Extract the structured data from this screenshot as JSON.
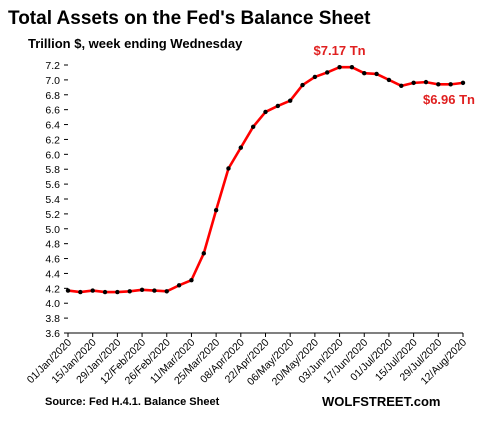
{
  "chart_data": {
    "type": "line",
    "title": "Total Assets on the Fed's Balance Sheet",
    "subtitle": "Trillion $, week ending Wednesday",
    "ylim": [
      3.6,
      7.2
    ],
    "ytick_step": 0.2,
    "grid": false,
    "x": [
      "01/Jan/2020",
      "08/Jan/2020",
      "15/Jan/2020",
      "22/Jan/2020",
      "29/Jan/2020",
      "05/Feb/2020",
      "12/Feb/2020",
      "19/Feb/2020",
      "26/Feb/2020",
      "04/Mar/2020",
      "11/Mar/2020",
      "18/Mar/2020",
      "25/Mar/2020",
      "01/Apr/2020",
      "08/Apr/2020",
      "15/Apr/2020",
      "22/Apr/2020",
      "29/Apr/2020",
      "06/May/2020",
      "13/May/2020",
      "20/May/2020",
      "27/May/2020",
      "03/Jun/2020",
      "10/Jun/2020",
      "17/Jun/2020",
      "24/Jun/2020",
      "01/Jul/2020",
      "08/Jul/2020",
      "15/Jul/2020",
      "22/Jul/2020",
      "29/Jul/2020",
      "05/Aug/2020",
      "12/Aug/2020"
    ],
    "tick_labels": [
      "01/Jan/2020",
      "15/Jan/2020",
      "29/Jan/2020",
      "12/Feb/2020",
      "26/Feb/2020",
      "11/Mar/2020",
      "25/Mar/2020",
      "08/Apr/2020",
      "22/Apr/2020",
      "06/May/2020",
      "20/May/2020",
      "03/Jun/2020",
      "17/Jun/2020",
      "01/Jul/2020",
      "15/Jul/2020",
      "29/Jul/2020",
      "12/Aug/2020"
    ],
    "series": [
      {
        "values": [
          4.17,
          4.15,
          4.17,
          4.15,
          4.15,
          4.16,
          4.18,
          4.17,
          4.16,
          4.24,
          4.31,
          4.67,
          5.25,
          5.81,
          6.09,
          6.37,
          6.57,
          6.65,
          6.72,
          6.93,
          7.04,
          7.1,
          7.17,
          7.17,
          7.09,
          7.08,
          7.0,
          6.92,
          6.96,
          6.97,
          6.94,
          6.94,
          6.96
        ],
        "color": "#ff0000",
        "marker_color": "#000000"
      }
    ],
    "annotations": [
      {
        "text": "$7.17 Tn",
        "at_index": 22
      },
      {
        "text": "$6.96 Tn",
        "at_index": 32
      }
    ],
    "annotation_color": "#e02020"
  },
  "footer": {
    "source": "Source: Fed H.4.1. Balance Sheet",
    "brand": "WOLFSTREET.com"
  }
}
